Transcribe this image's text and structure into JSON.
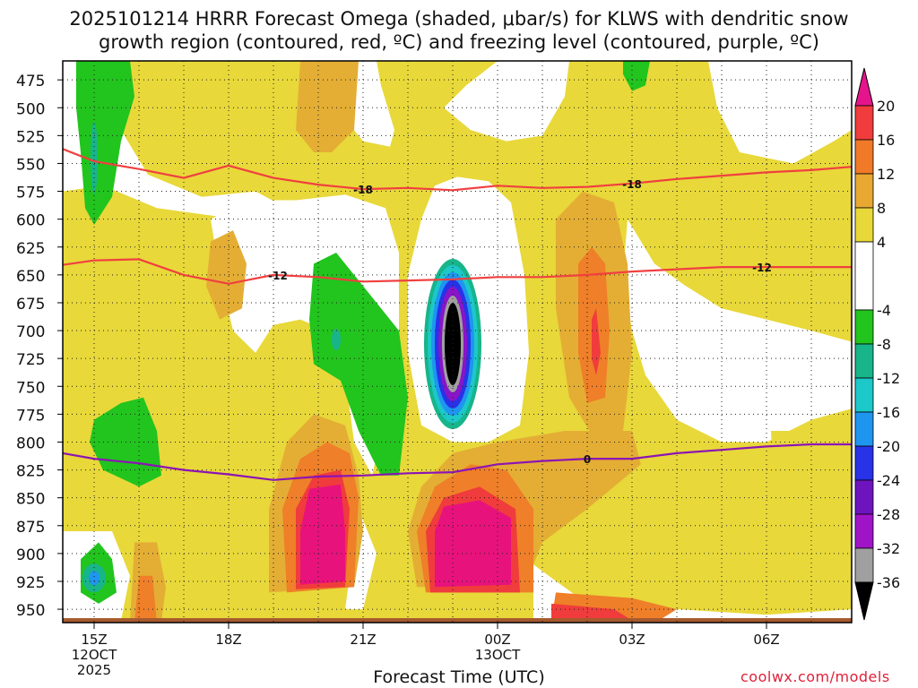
{
  "title_line1": "2025101214 HRRR Forecast Omega (shaded, μbar/s) for KLWS with dendritic snow",
  "title_line2": "growth region (contoured, red, ºC) and freezing level (contoured, purple, ºC)",
  "xlabel": "Forecast Time (UTC)",
  "credit": "coolwx.com/models",
  "chart_data": {
    "type": "heatmap",
    "title": "2025101214 HRRR Forecast Omega (shaded, μbar/s) for KLWS with dendritic snow growth region (contoured, red, ºC) and freezing level (contoured, purple, ºC)",
    "xlabel": "Forecast Time (UTC)",
    "ylabel": "",
    "x_ticks": [
      {
        "hour": 15,
        "label": "15Z",
        "sub1": "12OCT",
        "sub2": "2025"
      },
      {
        "hour": 18,
        "label": "18Z",
        "sub1": "",
        "sub2": ""
      },
      {
        "hour": 21,
        "label": "21Z",
        "sub1": "",
        "sub2": ""
      },
      {
        "hour": 24,
        "label": "00Z",
        "sub1": "13OCT",
        "sub2": ""
      },
      {
        "hour": 27,
        "label": "03Z",
        "sub1": "",
        "sub2": ""
      },
      {
        "hour": 30,
        "label": "06Z",
        "sub1": "",
        "sub2": ""
      }
    ],
    "xlim": [
      14.3,
      31.9
    ],
    "y_ticks": [
      475,
      500,
      525,
      550,
      575,
      600,
      625,
      650,
      675,
      700,
      725,
      750,
      775,
      800,
      825,
      850,
      875,
      900,
      925,
      950
    ],
    "ylim": [
      458,
      962
    ],
    "grid": true,
    "colorbar": {
      "labels": [
        20,
        16,
        12,
        8,
        4,
        -4,
        -8,
        -12,
        -16,
        -20,
        -24,
        -28,
        -32,
        -36
      ],
      "bands": [
        {
          "range": [
            16,
            20
          ],
          "color": "#f03c3c"
        },
        {
          "range": [
            12,
            16
          ],
          "color": "#f07a28"
        },
        {
          "range": [
            8,
            12
          ],
          "color": "#e8a832"
        },
        {
          "range": [
            4,
            8
          ],
          "color": "#e8d83a"
        },
        {
          "range": [
            -4,
            4
          ],
          "color": "#ffffff"
        },
        {
          "range": [
            -8,
            -4
          ],
          "color": "#22c41e"
        },
        {
          "range": [
            -12,
            -8
          ],
          "color": "#18b48a"
        },
        {
          "range": [
            -16,
            -12
          ],
          "color": "#1cc8c8"
        },
        {
          "range": [
            -20,
            -16
          ],
          "color": "#1e96f0"
        },
        {
          "range": [
            -24,
            -20
          ],
          "color": "#2832e6"
        },
        {
          "range": [
            -28,
            -24
          ],
          "color": "#6e14be"
        },
        {
          "range": [
            -32,
            -28
          ],
          "color": "#a014c8"
        },
        {
          "range": [
            -36,
            -32
          ],
          "color": "#a0a0a0"
        }
      ],
      "top_arrow_color": "#e6148c",
      "bottom_arrow_color": "#000000"
    },
    "colors": {
      "yellow": "#e8d83a",
      "gold": "#e4ae34",
      "orange": "#ef7f28",
      "red": "#f03c3c",
      "magenta": "#e8127c",
      "green": "#22c41e",
      "teal": "#18b48a",
      "cyan": "#1cc8c8",
      "blue": "#1e96f0",
      "purple": "#8a14c8",
      "gray": "#a0a0a0",
      "black": "#000000",
      "ground": "#a65a2e",
      "red_contour": "#f04040",
      "purple_contour": "#8c14b4"
    },
    "contours": [
      {
        "name": "-18",
        "label": "-18",
        "color": "#f04040",
        "points": [
          [
            14.3,
            537
          ],
          [
            15.0,
            548
          ],
          [
            16.0,
            555
          ],
          [
            17.0,
            563
          ],
          [
            18.0,
            552
          ],
          [
            19.0,
            563
          ],
          [
            20.0,
            569
          ],
          [
            21.0,
            573
          ],
          [
            22.0,
            572
          ],
          [
            23.0,
            574
          ],
          [
            24.0,
            570
          ],
          [
            25.0,
            572
          ],
          [
            26.0,
            571
          ],
          [
            27.0,
            568
          ],
          [
            28.0,
            564
          ],
          [
            29.0,
            561
          ],
          [
            30.0,
            558
          ],
          [
            31.0,
            556
          ],
          [
            31.9,
            553
          ]
        ],
        "label_hours": [
          21.0,
          27.0
        ]
      },
      {
        "name": "-12",
        "label": "-12",
        "color": "#f04040",
        "points": [
          [
            14.3,
            641
          ],
          [
            15.0,
            637
          ],
          [
            16.0,
            636
          ],
          [
            17.0,
            650
          ],
          [
            18.0,
            658
          ],
          [
            19.0,
            650
          ],
          [
            20.0,
            652
          ],
          [
            21.0,
            656
          ],
          [
            22.0,
            655
          ],
          [
            23.0,
            654
          ],
          [
            24.0,
            652
          ],
          [
            25.0,
            652
          ],
          [
            26.0,
            650
          ],
          [
            27.0,
            647
          ],
          [
            28.0,
            645
          ],
          [
            29.0,
            643
          ],
          [
            30.0,
            643
          ],
          [
            31.0,
            643
          ],
          [
            31.9,
            643
          ]
        ],
        "label_hours": [
          19.1,
          29.9
        ]
      },
      {
        "name": "0",
        "label": "0",
        "color": "#8c14b4",
        "points": [
          [
            14.3,
            810
          ],
          [
            15.0,
            815
          ],
          [
            16.0,
            819
          ],
          [
            17.0,
            825
          ],
          [
            18.0,
            829
          ],
          [
            19.0,
            834
          ],
          [
            20.0,
            831
          ],
          [
            21.0,
            830
          ],
          [
            22.0,
            828
          ],
          [
            23.0,
            827
          ],
          [
            24.0,
            820
          ],
          [
            25.0,
            817
          ],
          [
            26.0,
            815
          ],
          [
            27.0,
            815
          ],
          [
            28.0,
            810
          ],
          [
            29.0,
            807
          ],
          [
            30.0,
            804
          ],
          [
            31.0,
            802
          ],
          [
            31.9,
            802
          ]
        ],
        "label_hours": [
          26.0
        ]
      }
    ],
    "omega_regions": [
      {
        "value": "4 to 8",
        "color": "#e8d83a",
        "shape": "background"
      },
      {
        "value": "-4 to 4",
        "color": "#ffffff",
        "shape": "upper-left clear area",
        "center": [
          16.2,
          525
        ]
      },
      {
        "value": "-4 to 4",
        "color": "#ffffff",
        "shape": "upper-middle clear area",
        "center": [
          19.8,
          640
        ]
      },
      {
        "value": "-4 to 4",
        "color": "#ffffff",
        "shape": "upper-right clear area",
        "center": [
          28.6,
          505
        ]
      },
      {
        "value": "-8 to -4",
        "color": "#22c41e",
        "shape": "column",
        "center": [
          15.0,
          530
        ]
      },
      {
        "value": "-8 to -4",
        "color": "#22c41e",
        "shape": "patch",
        "center": [
          21.0,
          710
        ]
      },
      {
        "value": "-8 to -4",
        "color": "#22c41e",
        "shape": "patch",
        "center": [
          15.6,
          790
        ]
      },
      {
        "value": "-16 to -12",
        "color": "#1cc8c8",
        "shape": "core",
        "center": [
          15.0,
          925
        ]
      },
      {
        "value": "-36 and below",
        "color": "#000000",
        "shape": "updraft core",
        "center": [
          23.0,
          720
        ]
      },
      {
        "value": "20 and above",
        "color": "#e8127c",
        "shape": "downdraft core",
        "center": [
          19.8,
          880
        ]
      },
      {
        "value": "20 and above",
        "color": "#e8127c",
        "shape": "downdraft core",
        "center": [
          23.0,
          880
        ]
      },
      {
        "value": "16 to 20",
        "color": "#f03c3c",
        "shape": "strip",
        "center": [
          26.2,
          702
        ]
      }
    ]
  }
}
